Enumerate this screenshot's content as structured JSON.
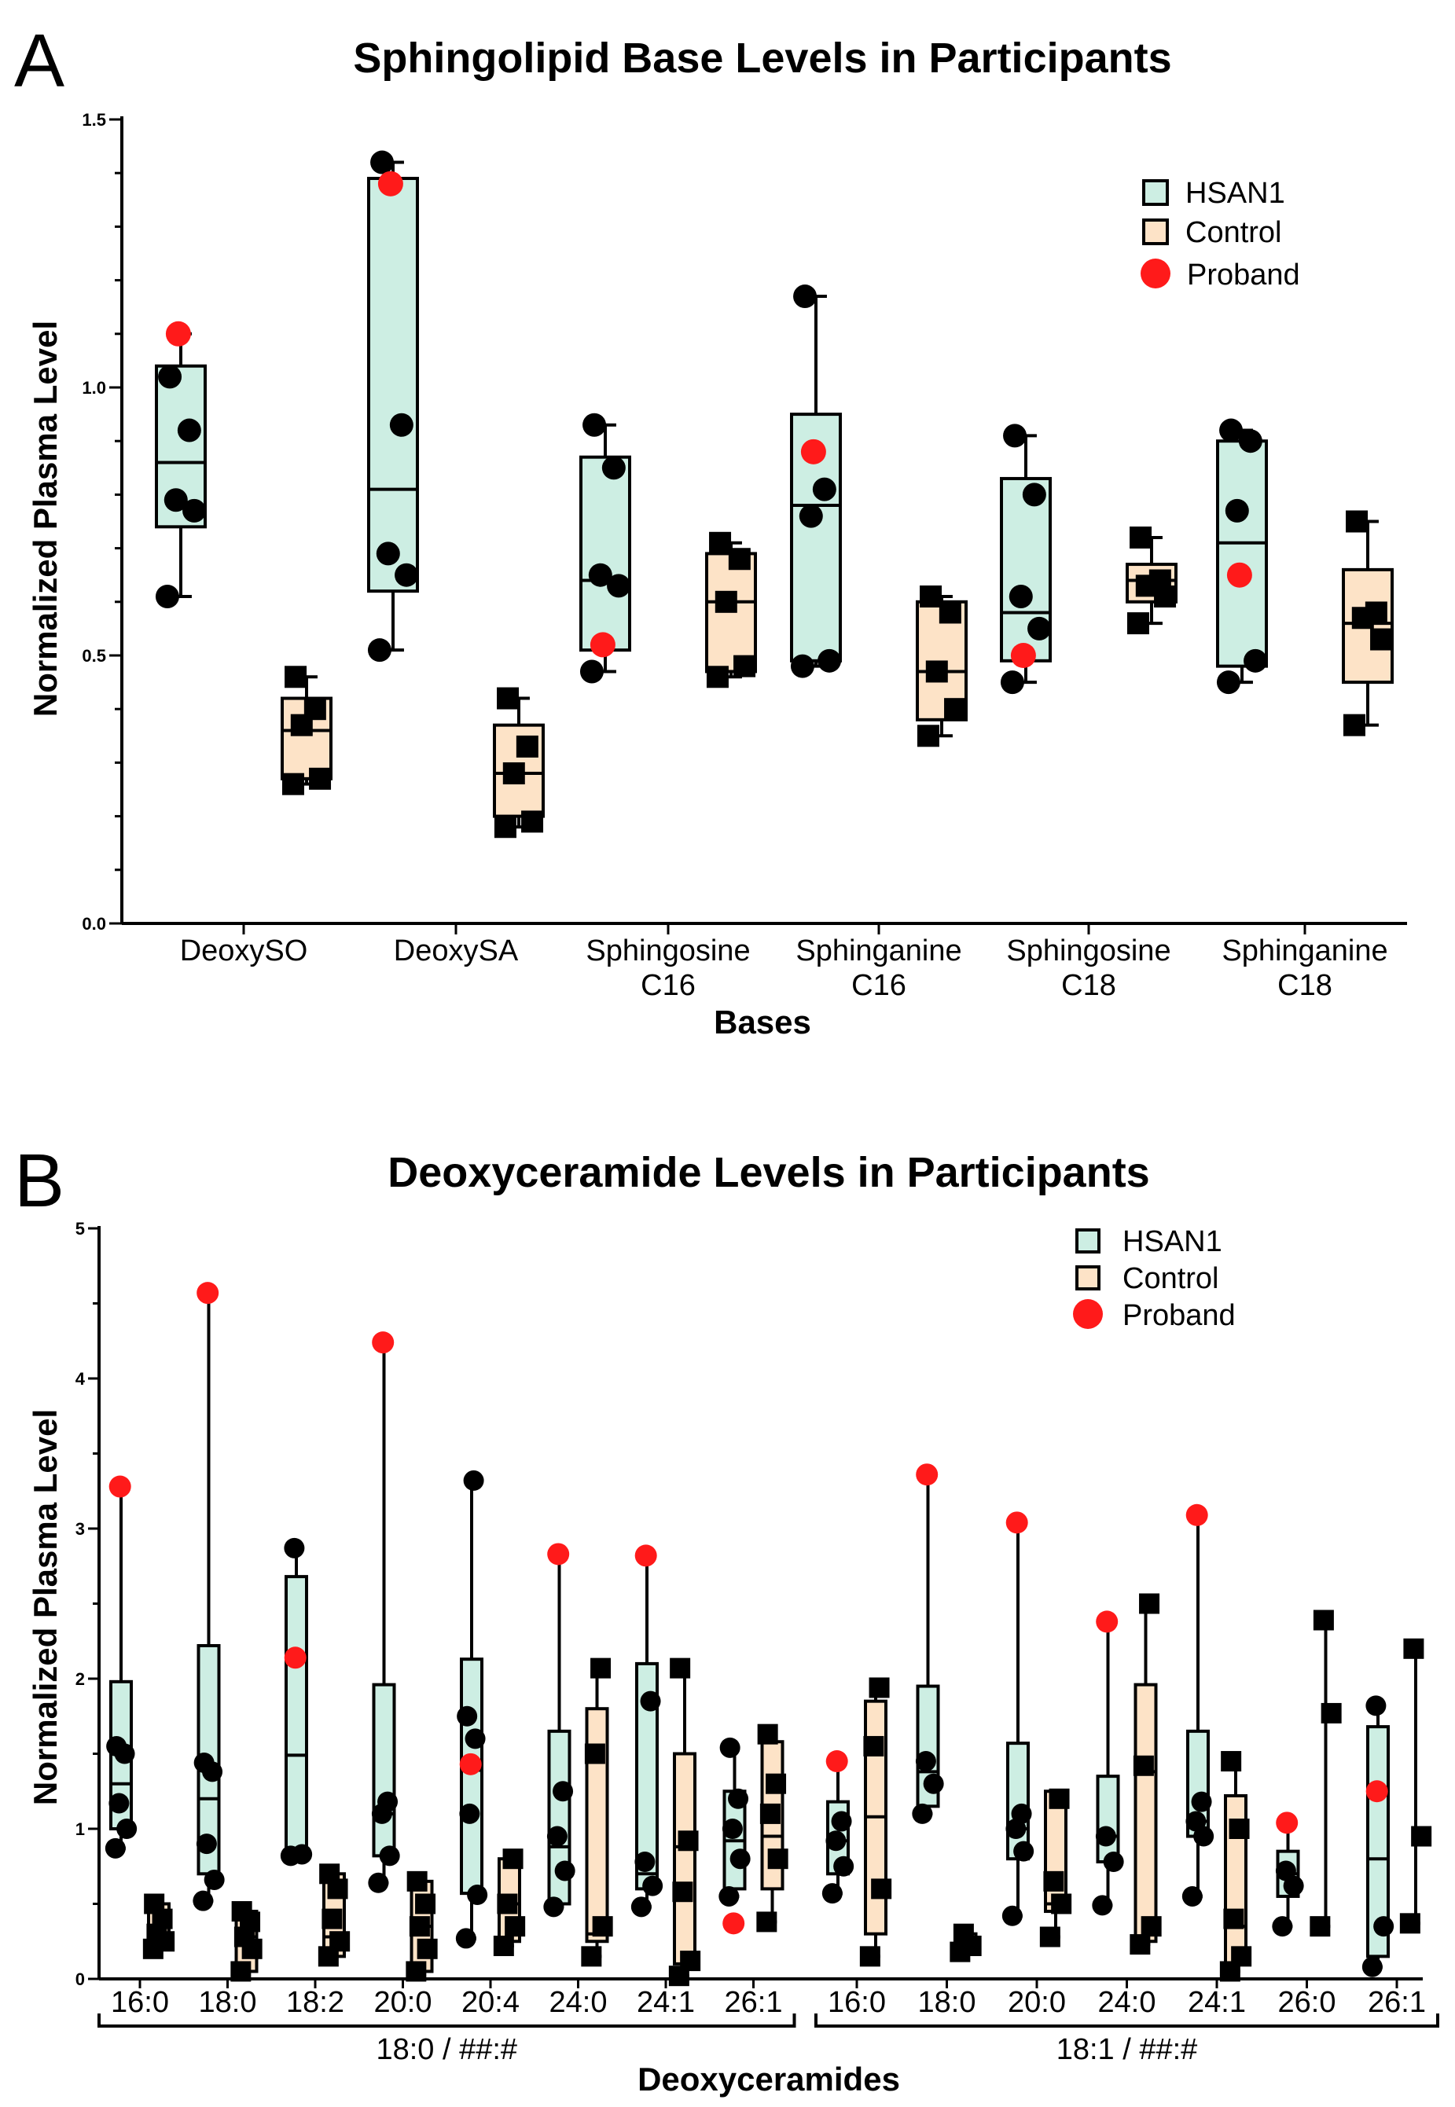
{
  "colors": {
    "hsan1": "#cdeee3",
    "control": "#fde3c7",
    "proband": "#ff1a1a",
    "ink": "#000000"
  },
  "chart_data": [
    {
      "panel": "A",
      "type": "box",
      "title": "Sphingolipid Base Levels in Participants",
      "xlabel": "Bases",
      "ylabel": "Normalized Plasma Level",
      "ylim": [
        0,
        1.5
      ],
      "yticks": [
        "0.0",
        "0.5",
        "1.0",
        "1.5"
      ],
      "ytick_values": [
        0,
        0.5,
        1.0,
        1.5
      ],
      "legend": [
        {
          "key": "hsan1",
          "label": "HSAN1"
        },
        {
          "key": "control",
          "label": "Control"
        },
        {
          "key": "proband",
          "label": "Proband"
        }
      ],
      "categories": [
        {
          "label": [
            "DeoxySO"
          ],
          "hsan1": {
            "whisker": [
              0.61,
              1.1
            ],
            "box": [
              0.74,
              1.04
            ],
            "median": 0.86,
            "points": [
              0.61,
              0.77,
              0.79,
              0.92,
              1.02
            ],
            "proband": 1.1
          },
          "control": {
            "whisker": [
              0.26,
              0.46
            ],
            "box": [
              0.27,
              0.42
            ],
            "median": 0.36,
            "points": [
              0.26,
              0.27,
              0.37,
              0.4,
              0.46
            ]
          }
        },
        {
          "label": [
            "DeoxySA"
          ],
          "hsan1": {
            "whisker": [
              0.51,
              1.42
            ],
            "box": [
              0.62,
              1.39
            ],
            "median": 0.81,
            "points": [
              0.51,
              0.65,
              0.69,
              0.93,
              1.42
            ],
            "proband": 1.38
          },
          "control": {
            "whisker": [
              0.18,
              0.42
            ],
            "box": [
              0.2,
              0.37
            ],
            "median": 0.28,
            "points": [
              0.18,
              0.19,
              0.28,
              0.33,
              0.42
            ]
          }
        },
        {
          "label": [
            "Sphingosine",
            "C16"
          ],
          "hsan1": {
            "whisker": [
              0.47,
              0.93
            ],
            "box": [
              0.51,
              0.87
            ],
            "median": 0.64,
            "points": [
              0.47,
              0.63,
              0.65,
              0.85,
              0.93
            ],
            "proband": 0.52
          },
          "control": {
            "whisker": [
              0.46,
              0.71
            ],
            "box": [
              0.47,
              0.69
            ],
            "median": 0.6,
            "points": [
              0.46,
              0.48,
              0.6,
              0.68,
              0.71
            ]
          }
        },
        {
          "label": [
            "Sphinganine",
            "C16"
          ],
          "hsan1": {
            "whisker": [
              0.48,
              1.17
            ],
            "box": [
              0.49,
              0.95
            ],
            "median": 0.78,
            "points": [
              0.48,
              0.49,
              0.76,
              0.81,
              1.17
            ],
            "proband": 0.88
          },
          "control": {
            "whisker": [
              0.35,
              0.61
            ],
            "box": [
              0.38,
              0.6
            ],
            "median": 0.47,
            "points": [
              0.35,
              0.4,
              0.47,
              0.58,
              0.61
            ]
          }
        },
        {
          "label": [
            "Sphingosine",
            "C18"
          ],
          "hsan1": {
            "whisker": [
              0.45,
              0.91
            ],
            "box": [
              0.49,
              0.83
            ],
            "median": 0.58,
            "points": [
              0.45,
              0.55,
              0.61,
              0.8,
              0.91
            ],
            "proband": 0.5
          },
          "control": {
            "whisker": [
              0.56,
              0.72
            ],
            "box": [
              0.6,
              0.67
            ],
            "median": 0.64,
            "points": [
              0.56,
              0.61,
              0.63,
              0.64,
              0.72
            ]
          }
        },
        {
          "label": [
            "Sphinganine",
            "C18"
          ],
          "hsan1": {
            "whisker": [
              0.45,
              0.92
            ],
            "box": [
              0.48,
              0.9
            ],
            "median": 0.71,
            "points": [
              0.45,
              0.49,
              0.77,
              0.9,
              0.92
            ],
            "proband": 0.65
          },
          "control": {
            "whisker": [
              0.37,
              0.75
            ],
            "box": [
              0.45,
              0.66
            ],
            "median": 0.56,
            "points": [
              0.37,
              0.53,
              0.57,
              0.58,
              0.75
            ]
          }
        }
      ]
    },
    {
      "panel": "B",
      "type": "box",
      "title": "Deoxyceramide Levels in Participants",
      "xlabel": "Deoxyceramides",
      "ylabel": "Normalized Plasma Level",
      "ylim": [
        0,
        5
      ],
      "yticks": [
        "0",
        "1",
        "2",
        "3",
        "4",
        "5"
      ],
      "ytick_values": [
        0,
        1,
        2,
        3,
        4,
        5
      ],
      "legend": [
        {
          "key": "hsan1",
          "label": "HSAN1"
        },
        {
          "key": "control",
          "label": "Control"
        },
        {
          "key": "proband",
          "label": "Proband"
        }
      ],
      "groups": [
        {
          "label": "18:0 / ##:#",
          "first": 0,
          "last": 7
        },
        {
          "label": "18:1 / ##:#",
          "first": 8,
          "last": 14
        }
      ],
      "categories": [
        {
          "label": "16:0",
          "hsan1": {
            "whisker": [
              0.87,
              3.28
            ],
            "box": [
              1.0,
              1.98
            ],
            "median": 1.3,
            "points": [
              0.87,
              1.0,
              1.17,
              1.5,
              1.55
            ],
            "proband": 3.28
          },
          "control": {
            "whisker": [
              0.2,
              0.5
            ],
            "box": [
              0.2,
              0.5
            ],
            "median": 0.3,
            "points": [
              0.2,
              0.25,
              0.3,
              0.4,
              0.5
            ]
          }
        },
        {
          "label": "18:0",
          "hsan1": {
            "whisker": [
              0.52,
              4.57
            ],
            "box": [
              0.7,
              2.22
            ],
            "median": 1.2,
            "points": [
              0.52,
              0.66,
              0.9,
              1.38,
              1.44
            ],
            "proband": 4.57
          },
          "control": {
            "whisker": [
              0.05,
              0.45
            ],
            "box": [
              0.05,
              0.45
            ],
            "median": 0.28,
            "points": [
              0.05,
              0.2,
              0.28,
              0.38,
              0.45
            ]
          }
        },
        {
          "label": "18:2",
          "hsan1": {
            "whisker": [
              0.82,
              2.87
            ],
            "box": [
              0.82,
              2.68
            ],
            "median": 1.49,
            "points": [
              0.82,
              0.83,
              2.87
            ],
            "proband": 2.14
          },
          "control": {
            "whisker": [
              0.15,
              0.7
            ],
            "box": [
              0.15,
              0.7
            ],
            "median": 0.28,
            "points": [
              0.15,
              0.25,
              0.4,
              0.6,
              0.7
            ]
          }
        },
        {
          "label": "20:0",
          "hsan1": {
            "whisker": [
              0.64,
              4.24
            ],
            "box": [
              0.82,
              1.96
            ],
            "median": 1.1,
            "points": [
              0.64,
              0.82,
              1.1,
              1.18
            ],
            "proband": 4.24
          },
          "control": {
            "whisker": [
              0.05,
              0.65
            ],
            "box": [
              0.05,
              0.65
            ],
            "median": 0.35,
            "points": [
              0.05,
              0.2,
              0.35,
              0.5,
              0.65
            ]
          }
        },
        {
          "label": "20:4",
          "hsan1": {
            "whisker": [
              0.27,
              3.32
            ],
            "box": [
              0.57,
              2.13
            ],
            "median": 1.39,
            "points": [
              0.27,
              0.56,
              1.1,
              1.6,
              1.75,
              3.32
            ],
            "proband": 1.43
          },
          "control": {
            "whisker": [
              0.22,
              0.82
            ],
            "box": [
              0.25,
              0.8
            ],
            "median": 0.5,
            "points": [
              0.22,
              0.35,
              0.5,
              0.8
            ]
          }
        },
        {
          "label": "24:0",
          "hsan1": {
            "whisker": [
              0.48,
              2.83
            ],
            "box": [
              0.5,
              1.65
            ],
            "median": 0.88,
            "points": [
              0.48,
              0.72,
              0.95,
              1.25
            ],
            "proband": 2.83
          },
          "control": {
            "whisker": [
              0.15,
              2.07
            ],
            "box": [
              0.25,
              1.8
            ],
            "median": 0.3,
            "points": [
              0.15,
              0.35,
              1.5,
              2.07
            ]
          }
        },
        {
          "label": "24:1",
          "hsan1": {
            "whisker": [
              0.48,
              2.82
            ],
            "box": [
              0.6,
              2.1
            ],
            "median": 0.7,
            "points": [
              0.48,
              0.62,
              0.78,
              1.85
            ],
            "proband": 2.82
          },
          "control": {
            "whisker": [
              0.02,
              2.07
            ],
            "box": [
              0.1,
              1.5
            ],
            "median": 0.88,
            "points": [
              0.02,
              0.12,
              0.58,
              0.92,
              2.07
            ]
          }
        },
        {
          "label": "26:1",
          "hsan1": {
            "whisker": [
              0.55,
              1.54
            ],
            "box": [
              0.6,
              1.25
            ],
            "median": 0.92,
            "points": [
              0.55,
              0.8,
              1.0,
              1.2,
              1.54
            ],
            "proband": 0.37
          },
          "control": {
            "whisker": [
              0.38,
              1.63
            ],
            "box": [
              0.6,
              1.58
            ],
            "median": 0.95,
            "points": [
              0.38,
              0.8,
              1.1,
              1.3,
              1.63
            ]
          }
        },
        {
          "label": "16:0",
          "hsan1": {
            "whisker": [
              0.57,
              1.45
            ],
            "box": [
              0.7,
              1.18
            ],
            "median": 0.92,
            "points": [
              0.57,
              0.75,
              0.92,
              1.05
            ],
            "proband": 1.45
          },
          "control": {
            "whisker": [
              0.15,
              1.94
            ],
            "box": [
              0.3,
              1.85
            ],
            "median": 1.08,
            "points": [
              0.15,
              0.6,
              1.55,
              1.94
            ]
          }
        },
        {
          "label": "18:0",
          "hsan1": {
            "whisker": [
              1.1,
              3.36
            ],
            "box": [
              1.15,
              1.95
            ],
            "median": 1.38,
            "points": [
              1.1,
              1.3,
              1.45
            ],
            "proband": 3.36
          },
          "control": {
            "whisker": [
              0.18,
              0.3
            ],
            "box": [
              0.18,
              0.3
            ],
            "median": 0.22,
            "points": [
              0.18,
              0.22,
              0.3
            ]
          }
        },
        {
          "label": "20:0",
          "hsan1": {
            "whisker": [
              0.42,
              3.04
            ],
            "box": [
              0.8,
              1.57
            ],
            "median": 1.0,
            "points": [
              0.42,
              0.85,
              1.0,
              1.1
            ],
            "proband": 3.04
          },
          "control": {
            "whisker": [
              0.28,
              1.25
            ],
            "box": [
              0.45,
              1.25
            ],
            "median": 0.5,
            "points": [
              0.28,
              0.5,
              0.65,
              1.2
            ]
          }
        },
        {
          "label": "24:0",
          "hsan1": {
            "whisker": [
              0.49,
              2.38
            ],
            "box": [
              0.78,
              1.35
            ],
            "median": 0.95,
            "points": [
              0.49,
              0.78,
              0.95
            ],
            "proband": 2.38
          },
          "control": {
            "whisker": [
              0.23,
              2.5
            ],
            "box": [
              0.25,
              1.96
            ],
            "median": 1.38,
            "points": [
              0.23,
              0.35,
              1.42,
              2.5
            ]
          }
        },
        {
          "label": "24:1",
          "hsan1": {
            "whisker": [
              0.55,
              3.09
            ],
            "box": [
              0.95,
              1.65
            ],
            "median": 1.05,
            "points": [
              0.55,
              0.95,
              1.05,
              1.18
            ],
            "proband": 3.09
          },
          "control": {
            "whisker": [
              0.05,
              1.45
            ],
            "box": [
              0.1,
              1.22
            ],
            "median": 0.35,
            "points": [
              0.05,
              0.15,
              0.4,
              1.0,
              1.45
            ]
          }
        },
        {
          "label": "26:0",
          "hsan1": {
            "whisker": [
              0.35,
              1.04
            ],
            "box": [
              0.55,
              0.85
            ],
            "median": 0.7,
            "points": [
              0.35,
              0.62,
              0.72
            ],
            "proband": 1.04
          },
          "control": {
            "whisker": [
              0.35,
              2.39
            ],
            "box": null,
            "median": null,
            "points": [
              0.35,
              1.77,
              2.39
            ]
          }
        },
        {
          "label": "26:1",
          "hsan1": {
            "whisker": [
              0.08,
              1.82
            ],
            "box": [
              0.15,
              1.68
            ],
            "median": 0.8,
            "points": [
              0.08,
              0.35,
              1.82
            ],
            "proband": 1.25
          },
          "control": {
            "whisker": [
              0.37,
              2.2
            ],
            "box": null,
            "median": null,
            "points": [
              0.37,
              0.95,
              2.2
            ]
          }
        }
      ]
    }
  ]
}
